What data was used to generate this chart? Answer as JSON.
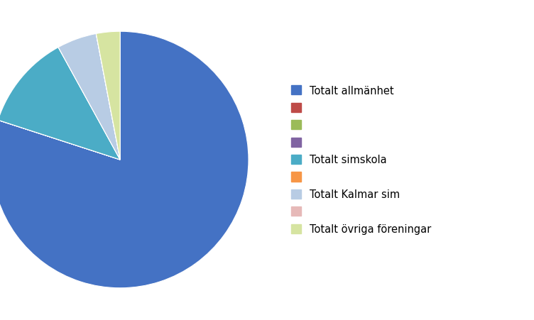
{
  "labels": [
    "Totalt allmänhet",
    "",
    "",
    "",
    "Totalt simskola",
    "",
    "Totalt Kalmar sim",
    "",
    "Totalt övriga föreningar"
  ],
  "values": [
    80.0,
    0.001,
    0.001,
    0.001,
    12.0,
    0.001,
    5.0,
    0.001,
    3.0
  ],
  "colors": [
    "#4472C4",
    "#BE4B48",
    "#9BBB59",
    "#8064A2",
    "#4BACC6",
    "#F79646",
    "#B8CCE4",
    "#E6B9B8",
    "#D6E4A1"
  ],
  "background_color": "#FFFFFF",
  "legend_fontsize": 10.5,
  "figsize": [
    7.52,
    4.52
  ],
  "dpi": 100,
  "startangle": 90
}
